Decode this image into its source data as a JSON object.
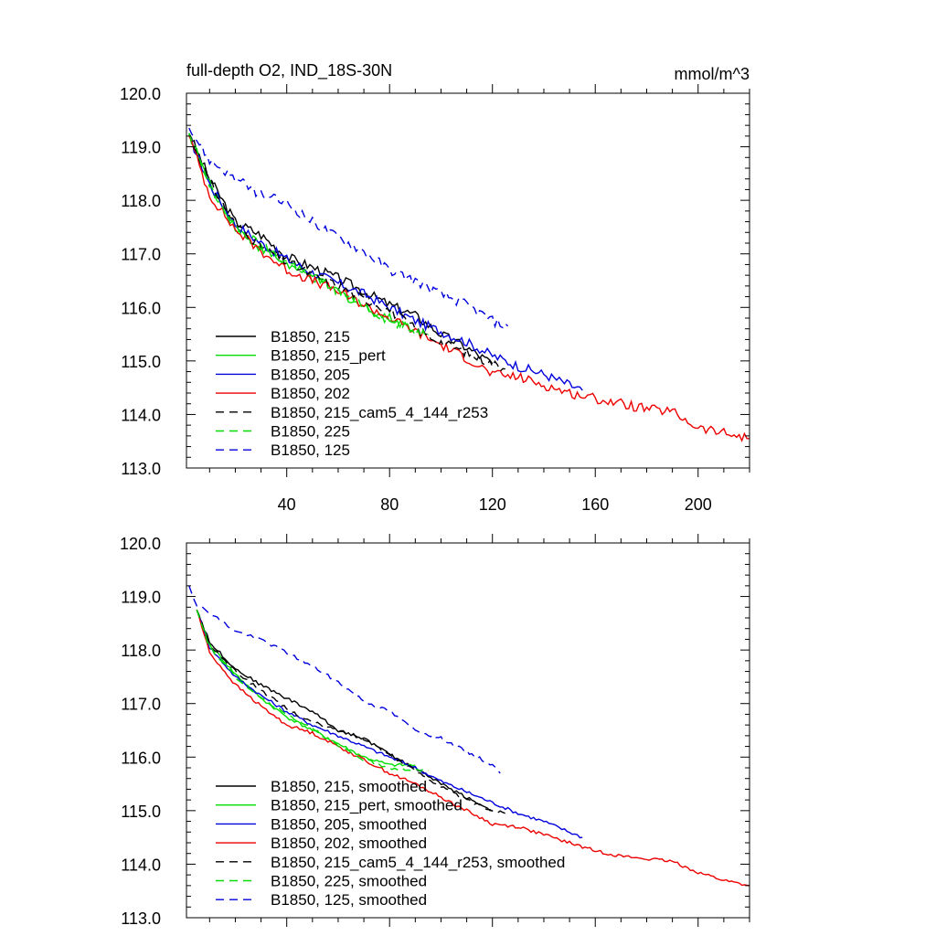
{
  "chart_data": [
    {
      "type": "line",
      "title": "full-depth O2, IND_18S-30N",
      "units_label": "mmol/m^3",
      "xlabel": "",
      "ylabel": "",
      "xlim": [
        1,
        220
      ],
      "ylim": [
        113.0,
        120.0
      ],
      "xticks": [
        40,
        80,
        120,
        160,
        200
      ],
      "xtick_labels": [
        "40",
        "80",
        "120",
        "160",
        "200"
      ],
      "yticks": [
        113.0,
        114.0,
        115.0,
        116.0,
        117.0,
        118.0,
        119.0,
        120.0
      ],
      "ytick_labels": [
        "113.0",
        "114.0",
        "115.0",
        "116.0",
        "117.0",
        "118.0",
        "119.0",
        "120.0"
      ],
      "legend_position": "bottom-left",
      "series": [
        {
          "name": "B1850, 215",
          "color": "#000000",
          "dash": "solid",
          "noise": 0.09,
          "x": [
            2,
            10,
            20,
            30,
            40,
            50,
            60,
            70,
            80,
            90,
            100,
            110,
            120
          ],
          "y": [
            119.25,
            118.4,
            117.6,
            117.35,
            116.95,
            116.75,
            116.55,
            116.3,
            116.05,
            115.85,
            115.5,
            115.25,
            114.95
          ]
        },
        {
          "name": "B1850, 215_pert",
          "color": "#00dd00",
          "dash": "solid",
          "noise": 0.09,
          "x": [
            2,
            10,
            20,
            30,
            40,
            50,
            60,
            70,
            80,
            90
          ],
          "y": [
            119.25,
            118.3,
            117.5,
            117.1,
            116.8,
            116.55,
            116.3,
            116.0,
            115.8,
            115.6
          ]
        },
        {
          "name": "B1850, 205",
          "color": "#0000dd",
          "dash": "solid",
          "noise": 0.09,
          "x": [
            2,
            10,
            20,
            30,
            40,
            50,
            60,
            70,
            80,
            90,
            100,
            110,
            120,
            130,
            140,
            150,
            155
          ],
          "y": [
            119.2,
            118.3,
            117.55,
            117.2,
            116.9,
            116.65,
            116.45,
            116.25,
            116.0,
            115.75,
            115.55,
            115.35,
            115.1,
            114.9,
            114.75,
            114.55,
            114.45
          ]
        },
        {
          "name": "B1850, 202",
          "color": "#ee0000",
          "dash": "solid",
          "noise": 0.09,
          "x": [
            2,
            10,
            20,
            30,
            40,
            50,
            60,
            70,
            80,
            90,
            100,
            110,
            120,
            130,
            140,
            150,
            160,
            170,
            180,
            190,
            200,
            210,
            220
          ],
          "y": [
            119.2,
            118.1,
            117.45,
            117.05,
            116.7,
            116.5,
            116.3,
            116.05,
            115.8,
            115.55,
            115.3,
            115.05,
            114.75,
            114.7,
            114.55,
            114.4,
            114.3,
            114.2,
            114.1,
            114.05,
            113.75,
            113.65,
            113.55
          ]
        },
        {
          "name": "B1850, 215_cam5_4_144_r253",
          "color": "#000000",
          "dash": "dashed",
          "noise": 0.09,
          "x": [
            2,
            10,
            20,
            30,
            40,
            50,
            60,
            70,
            80,
            90,
            100,
            110,
            120,
            125
          ],
          "y": [
            119.25,
            118.35,
            117.55,
            117.15,
            116.85,
            116.6,
            116.4,
            116.15,
            115.95,
            115.6,
            115.35,
            115.15,
            114.95,
            114.85
          ]
        },
        {
          "name": "B1850, 225",
          "color": "#00dd00",
          "dash": "dashed",
          "noise": 0.09,
          "x": [
            2,
            10,
            20,
            30,
            40,
            50,
            60,
            70,
            80,
            90,
            95
          ],
          "y": [
            119.25,
            118.25,
            117.5,
            117.15,
            116.85,
            116.6,
            116.3,
            116.05,
            115.75,
            115.55,
            115.5
          ]
        },
        {
          "name": "B1850, 125",
          "color": "#0000dd",
          "dash": "dashed",
          "noise": 0.09,
          "x": [
            2,
            10,
            20,
            30,
            40,
            50,
            60,
            70,
            80,
            90,
            100,
            110,
            120,
            126
          ],
          "y": [
            119.35,
            118.75,
            118.4,
            118.1,
            117.95,
            117.6,
            117.3,
            117.05,
            116.7,
            116.5,
            116.25,
            116.05,
            115.75,
            115.65
          ]
        }
      ]
    },
    {
      "type": "line",
      "title": "",
      "xlabel": "",
      "ylabel": "",
      "xlim": [
        1,
        220
      ],
      "ylim": [
        113.0,
        120.0
      ],
      "xticks": [
        40,
        80,
        120,
        160,
        200
      ],
      "xtick_labels": [],
      "yticks": [
        113.0,
        114.0,
        115.0,
        116.0,
        117.0,
        118.0,
        119.0,
        120.0
      ],
      "ytick_labels": [
        "113.0",
        "114.0",
        "115.0",
        "116.0",
        "117.0",
        "118.0",
        "119.0",
        "120.0"
      ],
      "legend_position": "bottom-left",
      "series": [
        {
          "name": "B1850, 215, smoothed",
          "color": "#000000",
          "dash": "solid",
          "noise": 0.03,
          "x": [
            5,
            10,
            20,
            30,
            40,
            50,
            60,
            70,
            80,
            90,
            100,
            110,
            120
          ],
          "y": [
            118.75,
            118.15,
            117.65,
            117.35,
            117.1,
            116.85,
            116.5,
            116.35,
            116.05,
            115.8,
            115.5,
            115.25,
            115.0
          ]
        },
        {
          "name": "B1850, 215_pert, smoothed",
          "color": "#00dd00",
          "dash": "solid",
          "noise": 0.03,
          "x": [
            5,
            10,
            20,
            30,
            40,
            50,
            60,
            70,
            80,
            90
          ],
          "y": [
            118.75,
            118.1,
            117.55,
            117.1,
            116.75,
            116.5,
            116.25,
            116.0,
            115.85,
            115.85
          ]
        },
        {
          "name": "B1850, 205, smoothed",
          "color": "#0000dd",
          "dash": "solid",
          "noise": 0.03,
          "x": [
            5,
            10,
            20,
            30,
            40,
            50,
            60,
            70,
            80,
            90,
            100,
            110,
            120,
            130,
            140,
            150,
            155
          ],
          "y": [
            118.75,
            118.05,
            117.5,
            117.15,
            116.85,
            116.6,
            116.4,
            116.2,
            116.0,
            115.8,
            115.55,
            115.35,
            115.15,
            114.95,
            114.8,
            114.6,
            114.5
          ]
        },
        {
          "name": "B1850, 202, smoothed",
          "color": "#ee0000",
          "dash": "solid",
          "noise": 0.03,
          "x": [
            5,
            10,
            20,
            30,
            40,
            50,
            60,
            70,
            80,
            90,
            100,
            110,
            120,
            130,
            140,
            150,
            160,
            170,
            180,
            190,
            200,
            210,
            220
          ],
          "y": [
            118.75,
            117.95,
            117.35,
            116.95,
            116.6,
            116.45,
            116.2,
            115.95,
            115.7,
            115.5,
            115.25,
            115.0,
            114.75,
            114.7,
            114.55,
            114.4,
            114.25,
            114.15,
            114.1,
            114.05,
            113.85,
            113.7,
            113.6
          ]
        },
        {
          "name": "B1850, 215_cam5_4_144_r253, smoothed",
          "color": "#000000",
          "dash": "dashed",
          "noise": 0.03,
          "x": [
            5,
            10,
            20,
            30,
            40,
            50,
            60,
            70,
            80,
            90,
            100,
            110,
            120,
            125
          ],
          "y": [
            118.75,
            118.1,
            117.6,
            117.25,
            116.9,
            116.65,
            116.5,
            116.35,
            116.05,
            115.75,
            115.45,
            115.2,
            115.0,
            114.95
          ]
        },
        {
          "name": "B1850, 225, smoothed",
          "color": "#00dd00",
          "dash": "dashed",
          "noise": 0.03,
          "x": [
            5,
            10,
            20,
            30,
            40,
            50,
            60,
            70,
            80,
            90,
            95
          ],
          "y": [
            118.75,
            118.05,
            117.5,
            117.1,
            116.8,
            116.55,
            116.2,
            115.95,
            115.8,
            115.75,
            115.75
          ]
        },
        {
          "name": "B1850, 125, smoothed",
          "color": "#0000dd",
          "dash": "dashed",
          "noise": 0.03,
          "x": [
            2,
            5,
            10,
            20,
            30,
            40,
            50,
            60,
            70,
            80,
            90,
            100,
            110,
            120,
            123
          ],
          "y": [
            119.2,
            118.85,
            118.7,
            118.35,
            118.2,
            117.95,
            117.7,
            117.4,
            117.05,
            116.85,
            116.5,
            116.35,
            116.1,
            115.85,
            115.7
          ]
        }
      ]
    }
  ]
}
